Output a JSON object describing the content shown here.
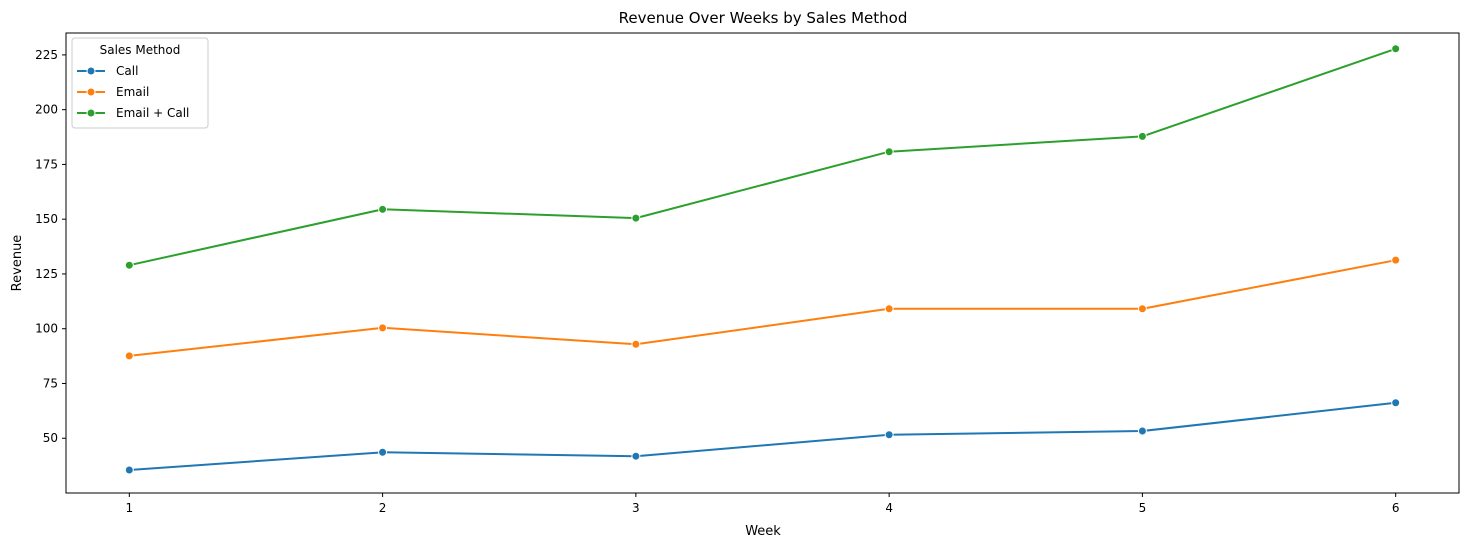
{
  "chart_data": {
    "type": "line",
    "title": "Revenue Over Weeks by Sales Method",
    "xlabel": "Week",
    "ylabel": "Revenue",
    "x": [
      1,
      2,
      3,
      4,
      5,
      6
    ],
    "xticks": [
      1,
      2,
      3,
      4,
      5,
      6
    ],
    "yticks": [
      50,
      75,
      100,
      125,
      150,
      175,
      200,
      225
    ],
    "xlim": [
      0.75,
      6.25
    ],
    "ylim": [
      25,
      235
    ],
    "grid": false,
    "legend": {
      "title": "Sales Method",
      "placement": "top-left"
    },
    "series": [
      {
        "name": "Call",
        "color": "#1f77b4",
        "values": [
          35.5,
          43.6,
          41.8,
          51.6,
          53.3,
          66.2
        ]
      },
      {
        "name": "Email",
        "color": "#ff7f0e",
        "values": [
          87.6,
          100.4,
          92.9,
          109.1,
          109.1,
          131.3
        ]
      },
      {
        "name": "Email + Call",
        "color": "#2ca02c",
        "values": [
          129.0,
          154.5,
          150.5,
          180.8,
          187.8,
          227.8
        ]
      }
    ]
  }
}
